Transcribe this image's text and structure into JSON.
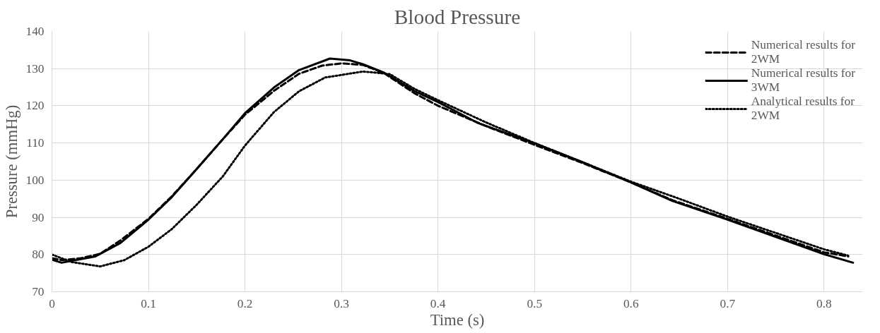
{
  "chart_data": {
    "type": "line",
    "title": "Blood Pressure",
    "xlabel": "Time (s)",
    "ylabel": "Pressure (mmHg)",
    "xlim": [
      0,
      0.84
    ],
    "ylim": [
      70,
      140
    ],
    "xticks": [
      0,
      0.1,
      0.2,
      0.3,
      0.4,
      0.5,
      0.6,
      0.7,
      0.8
    ],
    "yticks": [
      70,
      80,
      90,
      100,
      110,
      120,
      130,
      140
    ],
    "grid": true,
    "legend": "top right",
    "marker": "none",
    "series": [
      {
        "name": "Numerical results for 2WM",
        "color": "#000000",
        "line_style": "dashed",
        "x": [
          0,
          0.01,
          0.03,
          0.05,
          0.071,
          0.1,
          0.124,
          0.15,
          0.177,
          0.2,
          0.23,
          0.256,
          0.28,
          0.3,
          0.322,
          0.344,
          0.376,
          0.4,
          0.45,
          0.5,
          0.548,
          0.6,
          0.643,
          0.7,
          0.8,
          0.825
        ],
        "values": [
          79.0,
          78.5,
          79.0,
          80.2,
          83.8,
          89.6,
          95.6,
          103,
          111,
          117.6,
          124,
          128.6,
          130.8,
          131.4,
          131,
          128.8,
          123.3,
          120,
          114.5,
          109.5,
          104.8,
          99.4,
          94.6,
          89.6,
          80.6,
          79.5
        ]
      },
      {
        "name": "Numerical results for 3WM",
        "color": "#000000",
        "line_style": "solid",
        "x": [
          0,
          0.01,
          0.045,
          0.071,
          0.1,
          0.124,
          0.15,
          0.177,
          0.2,
          0.23,
          0.256,
          0.288,
          0.309,
          0.322,
          0.344,
          0.376,
          0.4,
          0.442,
          0.5,
          0.548,
          0.6,
          0.643,
          0.7,
          0.8,
          0.83
        ],
        "values": [
          78.6,
          77.8,
          79.5,
          83.1,
          89.4,
          95.4,
          103,
          111,
          118,
          124.9,
          129.6,
          132.7,
          132.2,
          131.2,
          128.9,
          123.9,
          121,
          115.3,
          109.9,
          105,
          99.4,
          94.4,
          89.4,
          80.1,
          77.8
        ]
      },
      {
        "name": "Analytical results for 2WM",
        "color": "#000000",
        "line_style": "dotted",
        "x": [
          0,
          0.02,
          0.05,
          0.075,
          0.1,
          0.124,
          0.15,
          0.177,
          0.2,
          0.23,
          0.256,
          0.283,
          0.322,
          0.336,
          0.35,
          0.376,
          0.4,
          0.45,
          0.5,
          0.55,
          0.6,
          0.65,
          0.7,
          0.8,
          0.825
        ],
        "values": [
          80,
          78,
          76.8,
          78.5,
          82.1,
          86.8,
          93.4,
          101,
          109.3,
          118.3,
          123.9,
          127.6,
          129.2,
          128.9,
          128.5,
          124.5,
          121.5,
          115.5,
          110,
          104.8,
          99.6,
          95,
          90.2,
          81.4,
          79.7
        ]
      }
    ]
  }
}
